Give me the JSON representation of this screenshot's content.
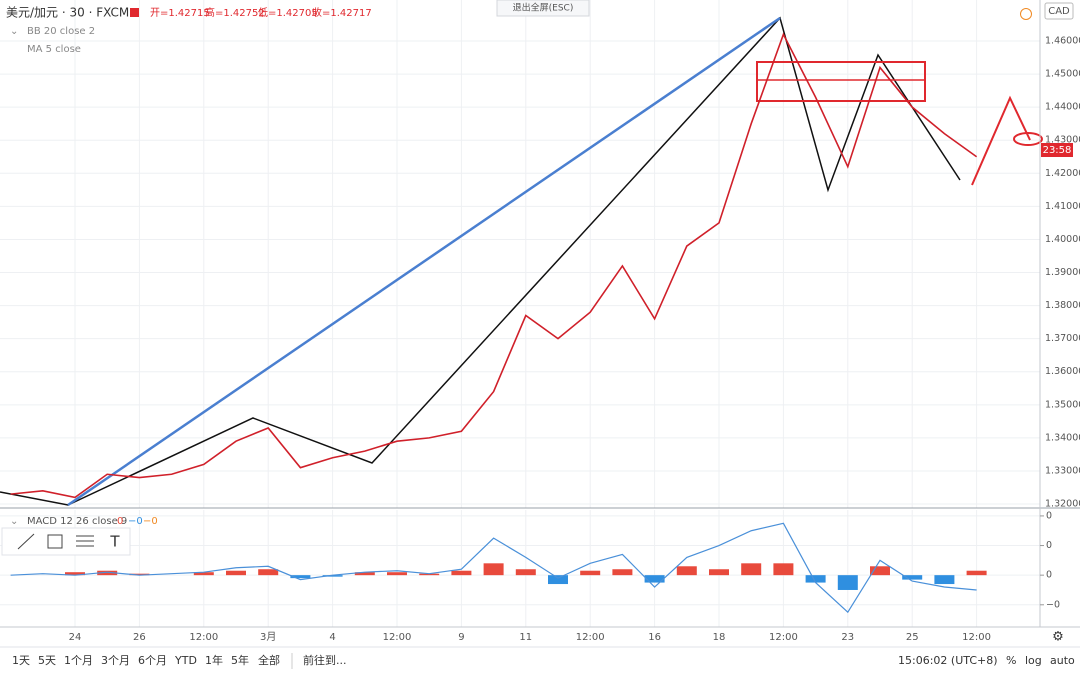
{
  "chart_data": {
    "type": "line",
    "title": "美元/加元 · 30 · FXCM",
    "ohlc": [
      "开=1.42715",
      "高=1.42752",
      "低=1.42705",
      "收=1.42717"
    ],
    "indicators": [
      "BB 20 close 2",
      "MA 5 close"
    ],
    "macd_label": "MACD 12 26 close 9",
    "macd_values": [
      "0",
      "−0",
      "−0"
    ],
    "currency": "CAD",
    "exit_fullscreen": "退出全屏(ESC)",
    "countdown": "23:58",
    "categories": [
      null,
      null,
      "24",
      null,
      "26",
      null,
      "12:00",
      null,
      "3月",
      null,
      "4",
      null,
      "12:00",
      null,
      "9",
      null,
      "11",
      null,
      "12:00",
      null,
      "16",
      null,
      "18",
      null,
      "12:00",
      null,
      "23",
      null,
      "25",
      null,
      "12:00"
    ],
    "series": [
      {
        "name": "USDCAD",
        "color": "#d0202a",
        "values": [
          1.323,
          1.324,
          1.322,
          1.329,
          1.328,
          1.329,
          1.332,
          1.339,
          1.343,
          1.331,
          1.334,
          1.336,
          1.339,
          1.34,
          1.342,
          1.354,
          1.377,
          1.37,
          1.378,
          1.392,
          1.376,
          1.398,
          1.405,
          1.435,
          1.462,
          1.443,
          1.422,
          1.452,
          1.44,
          1.432,
          1.425
        ]
      }
    ],
    "ylim": [
      1.3188,
      1.4724
    ],
    "yticks": [
      {
        "value": 1.32,
        "label": "1.32000"
      },
      {
        "value": 1.33,
        "label": "1.33000"
      },
      {
        "value": 1.34,
        "label": "1.34000"
      },
      {
        "value": 1.35,
        "label": "1.35000"
      },
      {
        "value": 1.36,
        "label": "1.36000"
      },
      {
        "value": 1.37,
        "label": "1.37000"
      },
      {
        "value": 1.38,
        "label": "1.38000"
      },
      {
        "value": 1.39,
        "label": "1.39000"
      },
      {
        "value": 1.4,
        "label": "1.40000"
      },
      {
        "value": 1.41,
        "label": "1.41000"
      },
      {
        "value": 1.42,
        "label": "1.42000"
      },
      {
        "value": 1.43,
        "label": "1.43000"
      },
      {
        "value": 1.44,
        "label": "1.44000"
      },
      {
        "value": 1.45,
        "label": "1.45000"
      },
      {
        "value": 1.46,
        "label": "1.46000"
      }
    ],
    "grid": true,
    "macd": {
      "hist_colors": [
        "#e84a3c",
        "#2f8fe0"
      ],
      "histogram": [
        0,
        0,
        0.0002,
        0.0003,
        0.0001,
        0,
        0.0002,
        0.0003,
        0.0004,
        -0.0002,
        -0.0001,
        0.0002,
        0.0002,
        0.0001,
        0.0003,
        0.0008,
        0.0004,
        -0.0006,
        0.0003,
        0.0004,
        -0.0005,
        0.0006,
        0.0004,
        0.0008,
        0.0008,
        -0.0005,
        -0.001,
        0.0006,
        -0.0003,
        -0.0006,
        0.0003
      ],
      "line_color": "#4a90d9",
      "line": [
        0,
        0.0001,
        0,
        0.0002,
        0,
        0.0001,
        0.0002,
        0.0005,
        0.0006,
        -0.0003,
        0,
        0.0002,
        0.0003,
        0.0001,
        0.0004,
        0.0025,
        0.0012,
        -0.0002,
        0.0008,
        0.0014,
        -0.0008,
        0.0012,
        0.002,
        0.003,
        0.0035,
        -0.0005,
        -0.0025,
        0.001,
        -0.0004,
        -0.0008,
        -0.001
      ],
      "ylim": [
        -0.0035,
        0.0044
      ],
      "yticks": [
        {
          "value": 0.004,
          "label": "0"
        },
        {
          "value": 0.002,
          "label": "0"
        },
        {
          "value": 0,
          "label": "0"
        },
        {
          "value": -0.002,
          "label": "−0"
        }
      ]
    },
    "toolbar": [
      "1天",
      "5天",
      "1个月",
      "3个月",
      "6个月",
      "YTD",
      "1年",
      "5年",
      "全部",
      "前往到..."
    ],
    "clock": "15:06:02 (UTC+8)",
    "scale_options": [
      "%",
      "log",
      "auto"
    ]
  }
}
